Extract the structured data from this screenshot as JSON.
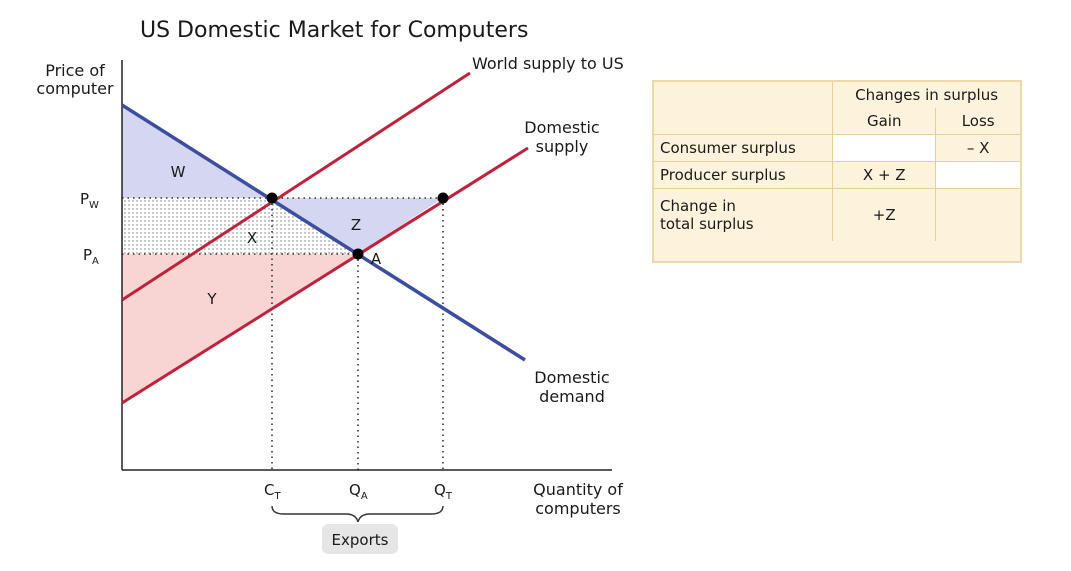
{
  "title": "US Domestic Market for Computers",
  "axes": {
    "y_label_line1": "Price of",
    "y_label_line2": "computer",
    "x_label_line1": "Quantity of",
    "x_label_line2": "computers"
  },
  "curves": {
    "world_supply": "World supply to US",
    "domestic_supply_line1": "Domestic",
    "domestic_supply_line2": "supply",
    "domestic_demand_line1": "Domestic",
    "domestic_demand_line2": "demand"
  },
  "price_labels": {
    "pw_main": "P",
    "pw_sub": "W",
    "pa_main": "P",
    "pa_sub": "A"
  },
  "quantity_labels": {
    "ct_main": "C",
    "ct_sub": "T",
    "qa_main": "Q",
    "qa_sub": "A",
    "qt_main": "Q",
    "qt_sub": "T"
  },
  "areas": {
    "w": "W",
    "x": "X",
    "y": "Y",
    "z": "Z"
  },
  "point_a": "A",
  "bracket_label": "Exports",
  "colors": {
    "supply": "#c0223b",
    "demand": "#3c4ea0",
    "consumer_fill": "#d4d6f2",
    "producer_fill": "#f8d4d2",
    "panel_bg": "#fdf3dc"
  },
  "table": {
    "group_header": "Changes in surplus",
    "col_gain": "Gain",
    "col_loss": "Loss",
    "rows": [
      {
        "label": "Consumer surplus",
        "gain": "",
        "loss": "– X"
      },
      {
        "label": "Producer surplus",
        "gain": "X + Z",
        "loss": ""
      },
      {
        "label_line1": "Change in",
        "label_line2": "total surplus",
        "gain": "+Z",
        "loss": ""
      }
    ]
  }
}
